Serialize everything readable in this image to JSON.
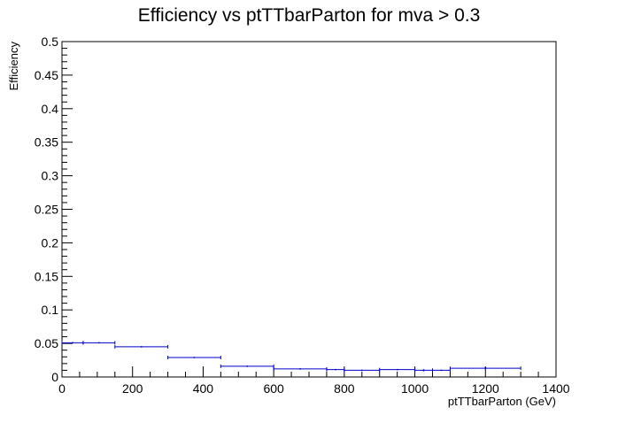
{
  "chart_data": {
    "type": "scatter",
    "title": "Efficiency vs ptTTbarParton for mva > 0.3",
    "xlabel": "ptTTbarParton (GeV)",
    "ylabel": "Efficiency",
    "xlim": [
      0,
      1400
    ],
    "ylim": [
      0,
      0.5
    ],
    "xticks": [
      0,
      200,
      400,
      600,
      800,
      1000,
      1200,
      1400
    ],
    "xtick_labels": [
      "0",
      "200",
      "400",
      "600",
      "800",
      "1000",
      "1200",
      "1400"
    ],
    "yticks": [
      0,
      0.05,
      0.1,
      0.15,
      0.2,
      0.25,
      0.3,
      0.35,
      0.4,
      0.45,
      0.5
    ],
    "ytick_labels": [
      "0",
      "0.05",
      "0.1",
      "0.15",
      "0.2",
      "0.25",
      "0.3",
      "0.35",
      "0.4",
      "0.45",
      "0.5"
    ],
    "grid": false,
    "series_color": "#0000cc",
    "points": [
      {
        "x": 30,
        "xlow": 0,
        "xhigh": 60,
        "y": 0.051,
        "yerr": 0.001
      },
      {
        "x": 105,
        "xlow": 60,
        "xhigh": 150,
        "y": 0.051,
        "yerr": 0.001
      },
      {
        "x": 225,
        "xlow": 150,
        "xhigh": 300,
        "y": 0.045,
        "yerr": 0.001
      },
      {
        "x": 375,
        "xlow": 300,
        "xhigh": 450,
        "y": 0.029,
        "yerr": 0.001
      },
      {
        "x": 525,
        "xlow": 450,
        "xhigh": 600,
        "y": 0.016,
        "yerr": 0.001
      },
      {
        "x": 675,
        "xlow": 600,
        "xhigh": 750,
        "y": 0.012,
        "yerr": 0.001
      },
      {
        "x": 775,
        "xlow": 750,
        "xhigh": 800,
        "y": 0.011,
        "yerr": 0.001
      },
      {
        "x": 850,
        "xlow": 800,
        "xhigh": 900,
        "y": 0.01,
        "yerr": 0.001
      },
      {
        "x": 950,
        "xlow": 900,
        "xhigh": 1000,
        "y": 0.011,
        "yerr": 0.001
      },
      {
        "x": 1025,
        "xlow": 1000,
        "xhigh": 1050,
        "y": 0.01,
        "yerr": 0.0015
      },
      {
        "x": 1075,
        "xlow": 1050,
        "xhigh": 1100,
        "y": 0.01,
        "yerr": 0.001
      },
      {
        "x": 1200,
        "xlow": 1100,
        "xhigh": 1300,
        "y": 0.013,
        "yerr": 0.0015
      }
    ]
  }
}
